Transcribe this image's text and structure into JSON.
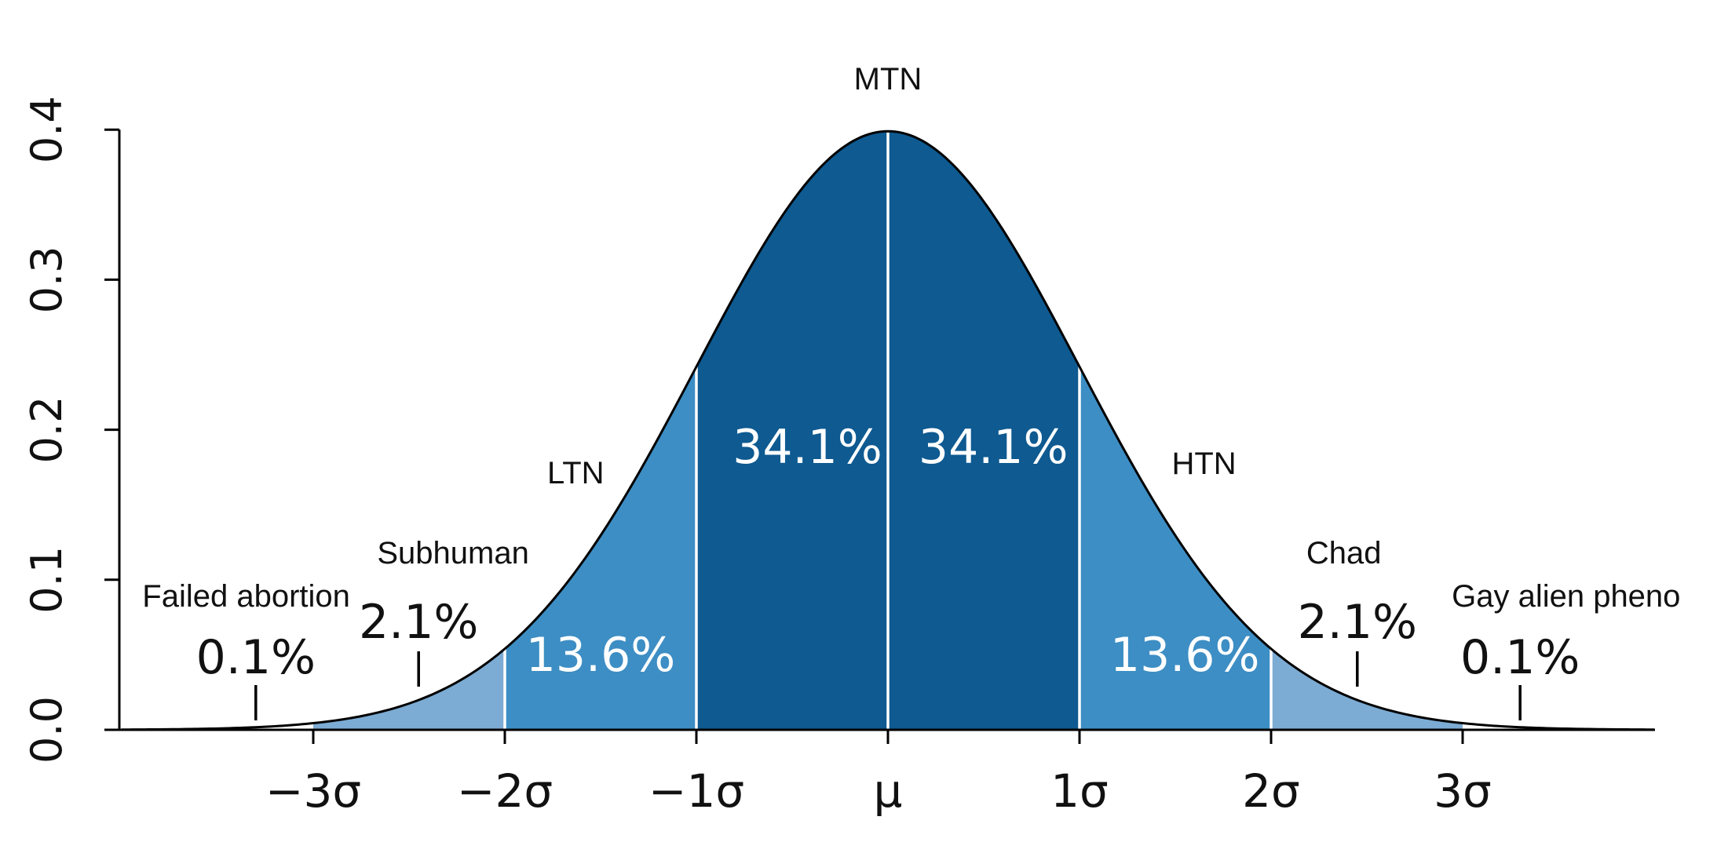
{
  "chart_data": {
    "type": "area",
    "curve": "standard normal density",
    "xlim": [
      -4,
      4
    ],
    "ylim": [
      0,
      0.4
    ],
    "yticks": [
      0.0,
      0.1,
      0.2,
      0.3,
      0.4
    ],
    "ytick_labels": [
      "0.0",
      "0.1",
      "0.2",
      "0.3",
      "0.4"
    ],
    "xticks": [
      -3,
      -2,
      -1,
      0,
      1,
      2,
      3
    ],
    "xtick_labels": [
      "−3σ",
      "−2σ",
      "−1σ",
      "μ",
      "1σ",
      "2σ",
      "3σ"
    ],
    "regions": [
      {
        "from": -3,
        "to": -2,
        "color": "#7cabd3"
      },
      {
        "from": -2,
        "to": -1,
        "color": "#3d8ec4"
      },
      {
        "from": -1,
        "to": 0,
        "color": "#0e5a91"
      },
      {
        "from": 0,
        "to": 1,
        "color": "#0e5a91"
      },
      {
        "from": 1,
        "to": 2,
        "color": "#3d8ec4"
      },
      {
        "from": 2,
        "to": 3,
        "color": "#7cabd3"
      }
    ],
    "band_labels": [
      {
        "x": -1.5,
        "text": "13.6%",
        "color": "white"
      },
      {
        "x": -0.42,
        "text": "34.1%",
        "color": "white"
      },
      {
        "x": 0.55,
        "text": "34.1%",
        "color": "white"
      },
      {
        "x": 1.55,
        "text": "13.6%",
        "color": "white"
      }
    ],
    "tail_labels": [
      {
        "x": -3.3,
        "text": "0.1%"
      },
      {
        "x": -2.45,
        "text": "2.1%"
      },
      {
        "x": 2.45,
        "text": "2.1%"
      },
      {
        "x": 3.3,
        "text": "0.1%"
      }
    ],
    "annotations": [
      {
        "x": 0,
        "text": "MTN"
      },
      {
        "x": -1.63,
        "text": "LTN"
      },
      {
        "x": 1.65,
        "text": "HTN"
      },
      {
        "x": -2.27,
        "text": "Subhuman"
      },
      {
        "x": 2.38,
        "text": "Chad"
      },
      {
        "x": -3.35,
        "text": "Failed abortion"
      },
      {
        "x": 3.54,
        "text": "Gay alien pheno"
      }
    ]
  }
}
